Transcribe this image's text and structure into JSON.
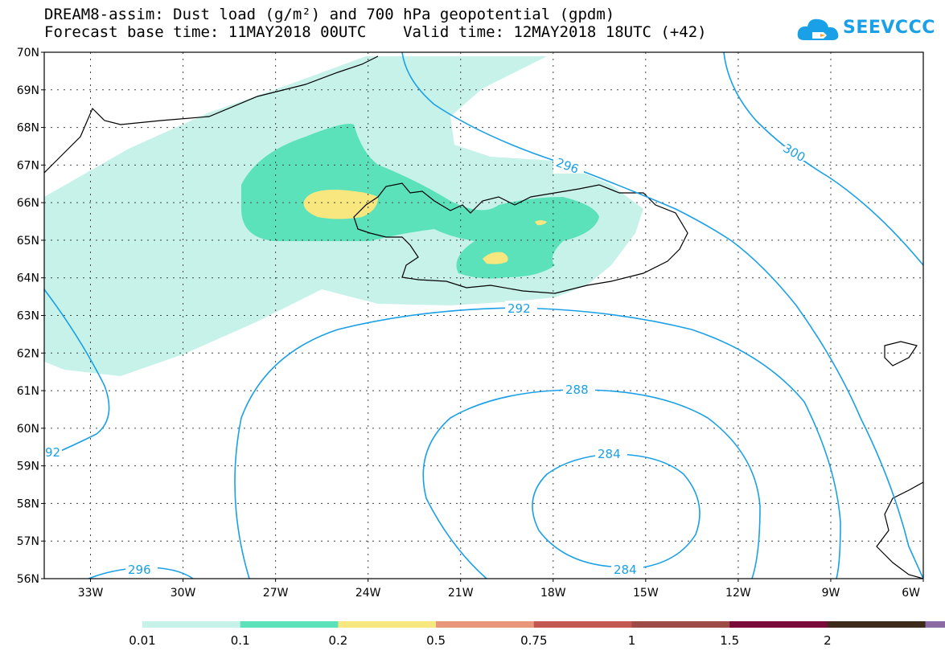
{
  "title": {
    "line1": "DREAM8-assim: Dust load (g/m²) and 700 hPa geopotential (gpdm)",
    "line2": "Forecast base time: 11MAY2018 00UTC    Valid time: 12MAY2018 18UTC (+42)"
  },
  "logo": {
    "text": "SEEVCCC",
    "color": "#1aa0e6"
  },
  "map": {
    "lat_labels": [
      "70N",
      "69N",
      "68N",
      "67N",
      "66N",
      "65N",
      "64N",
      "63N",
      "62N",
      "61N",
      "60N",
      "59N",
      "58N",
      "57N",
      "56N"
    ],
    "lon_labels": [
      "33W",
      "30W",
      "27W",
      "24W",
      "21W",
      "18W",
      "15W",
      "12W",
      "9W",
      "6W"
    ],
    "lat_range": [
      56,
      70
    ],
    "lon_range": [
      -34.5,
      -6
    ],
    "contour_color": "#1aa0e6",
    "contour_labels": [
      "296",
      "300",
      "292",
      "288",
      "284",
      "284",
      "296",
      "92"
    ]
  },
  "legend": {
    "labels": [
      "0.01",
      "0.1",
      "0.2",
      "0.5",
      "0.75",
      "1",
      "1.5",
      "2"
    ],
    "colors": [
      "#c6f2ea",
      "#5ce2bb",
      "#f8e67e",
      "#e9977a",
      "#c2584f",
      "#9e4a46",
      "#7a0a3a",
      "#3e2a1a",
      "#8c6aa3"
    ]
  }
}
